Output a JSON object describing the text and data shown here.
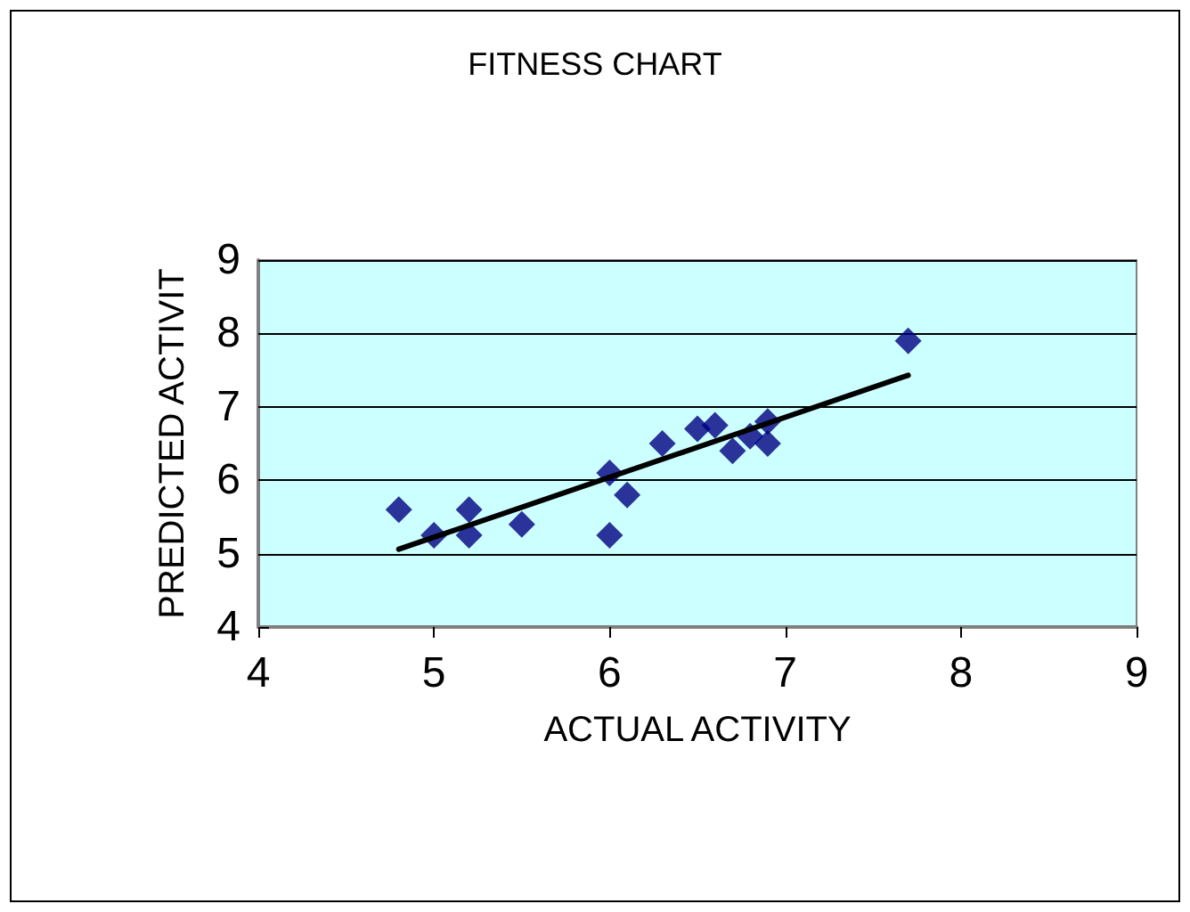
{
  "chart_data": {
    "type": "scatter",
    "title": "FITNESS CHART",
    "xlabel": "ACTUAL ACTIVITY",
    "ylabel": "PREDICTED ACTIVIT",
    "xlim": [
      4,
      9
    ],
    "xticks": [
      4,
      5,
      6,
      7,
      8,
      9
    ],
    "ylim": [
      4,
      9
    ],
    "yticks": [
      4,
      5,
      6,
      7,
      8,
      9
    ],
    "grid": "y",
    "marker": "diamond",
    "series": [
      {
        "color": "#000080",
        "x": [
          4.8,
          5.0,
          5.2,
          5.2,
          5.5,
          6.0,
          6.0,
          6.1,
          6.3,
          6.5,
          6.6,
          6.7,
          6.9,
          6.8,
          6.9,
          7.7
        ],
        "values": [
          5.6,
          5.25,
          5.6,
          5.25,
          5.4,
          6.1,
          5.25,
          5.8,
          6.5,
          6.7,
          6.75,
          6.4,
          6.8,
          6.6,
          6.5,
          7.9
        ]
      },
      {
        "type": "line",
        "color": "#000000",
        "x": [
          4.8,
          7.7
        ],
        "values": [
          5.06,
          7.43
        ],
        "marker": "none",
        "line_style": "solid"
      }
    ]
  }
}
